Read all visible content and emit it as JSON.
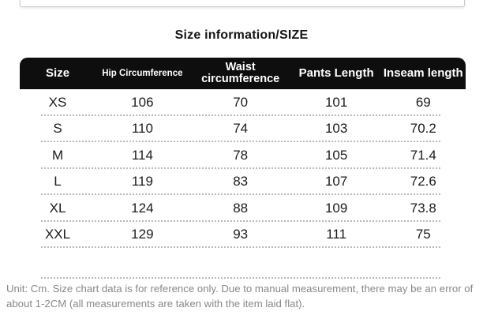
{
  "title": "Size information/SIZE",
  "chart_data": {
    "type": "table",
    "title": "Size information/SIZE",
    "unit": "Cm",
    "columns": [
      "Size",
      "Hip Circumference",
      "Waist circumference",
      "Pants Length",
      "Inseam length"
    ],
    "rows": [
      [
        "XS",
        "106",
        "70",
        "101",
        "69"
      ],
      [
        "S",
        "110",
        "74",
        "103",
        "70.2"
      ],
      [
        "M",
        "114",
        "78",
        "105",
        "71.4"
      ],
      [
        "L",
        "119",
        "83",
        "107",
        "72.6"
      ],
      [
        "XL",
        "124",
        "88",
        "109",
        "73.8"
      ],
      [
        "XXL",
        "129",
        "93",
        "111",
        "75"
      ]
    ]
  },
  "footer": {
    "note": "Unit: Cm. Size chart data is for reference only. Due to manual measurement, there may be an error of about 1-2CM (all measurements are taken with the item laid flat)."
  },
  "colors": {
    "header_bg": "#0e0e0e",
    "header_text": "#ffffff",
    "body_text": "#1c1c1c",
    "footer_text": "#888888",
    "divider": "#b9b9b9",
    "panel_border": "#cccccc",
    "background": "#ffffff"
  }
}
